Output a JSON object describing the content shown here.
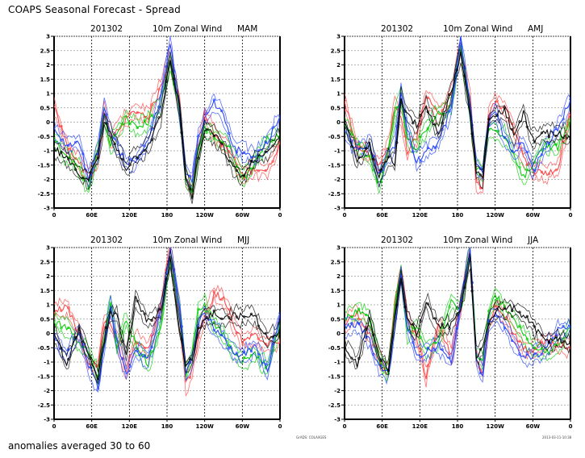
{
  "header": {
    "title": "COAPS Seasonal Forecast - Spread"
  },
  "footer": {
    "note": "anomalies averaged 30 to 60",
    "credit": "GrADS: COLA/IGES",
    "timestamp": "2013-03-11-10:38"
  },
  "colors": {
    "red": "#ff4040",
    "green": "#00cc00",
    "blue": "#2040ff",
    "black": "#000000",
    "grid": "#999999"
  },
  "chart_data": [
    {
      "type": "line",
      "title": {
        "date": "201302",
        "variable": "10m Zonal Wind",
        "season": "MAM"
      },
      "xlabel": "",
      "ylabel": "",
      "ylim": [
        -3,
        3
      ],
      "yticks": [
        "3",
        "2.5",
        "2",
        "1.5",
        "1",
        "0.5",
        "0",
        "-0.5",
        "-1",
        "-1.5",
        "-2",
        "-2.5",
        "-3"
      ],
      "xticks": [
        "0",
        "60E",
        "120E",
        "180",
        "120W",
        "60W",
        "0"
      ],
      "grid": true,
      "x": [
        0,
        20,
        40,
        55,
        70,
        80,
        90,
        100,
        115,
        130,
        150,
        170,
        185,
        200,
        210,
        220,
        230,
        240,
        255,
        270,
        285,
        300,
        320,
        340,
        360
      ],
      "series": [
        {
          "name": "red",
          "values": [
            0.5,
            -0.8,
            -1.4,
            -1.9,
            -1.2,
            0.4,
            -0.6,
            -0.3,
            0.1,
            0.4,
            0.2,
            1.2,
            2.4,
            0.6,
            -2.0,
            -2.3,
            -0.8,
            0.3,
            -0.4,
            -0.8,
            -1.2,
            -1.9,
            -1.6,
            -1.7,
            -0.7
          ]
        },
        {
          "name": "green",
          "values": [
            -0.6,
            -1.2,
            -1.6,
            -2.3,
            -1.0,
            0.3,
            -0.8,
            -0.4,
            0.2,
            -0.2,
            0.0,
            0.6,
            2.1,
            0.4,
            -1.9,
            -2.5,
            -1.0,
            -0.2,
            -0.5,
            -0.7,
            -1.1,
            -2.0,
            -1.4,
            -0.6,
            -0.5
          ]
        },
        {
          "name": "blue",
          "values": [
            -0.3,
            -0.8,
            -0.7,
            -2.0,
            -1.0,
            0.6,
            -0.4,
            -0.8,
            -1.4,
            -1.4,
            -0.6,
            0.8,
            2.8,
            0.3,
            -1.8,
            -2.0,
            -0.5,
            0.1,
            0.7,
            0.2,
            -0.9,
            -1.0,
            -1.2,
            -0.7,
            0.2
          ]
        },
        {
          "name": "black",
          "values": [
            -0.9,
            -1.3,
            -1.8,
            -2.0,
            -1.2,
            0.0,
            -0.4,
            -0.9,
            -1.6,
            -1.2,
            -0.8,
            0.2,
            2.2,
            0.5,
            -1.9,
            -2.6,
            -1.2,
            -0.3,
            -0.4,
            -0.9,
            -1.6,
            -1.9,
            -1.3,
            -1.1,
            -0.5
          ]
        }
      ]
    },
    {
      "type": "line",
      "title": {
        "date": "201302",
        "variable": "10m Zonal Wind",
        "season": "AMJ"
      },
      "xlabel": "",
      "ylabel": "",
      "ylim": [
        -3,
        3
      ],
      "yticks": [
        "3",
        "2.5",
        "2",
        "1.5",
        "1",
        "0.5",
        "0",
        "-0.5",
        "-1",
        "-1.5",
        "-2",
        "-2.5",
        "-3"
      ],
      "xticks": [
        "0",
        "60E",
        "120E",
        "180",
        "120W",
        "60W",
        "0"
      ],
      "grid": true,
      "x": [
        0,
        20,
        40,
        55,
        70,
        80,
        90,
        100,
        115,
        130,
        150,
        170,
        185,
        200,
        210,
        220,
        230,
        240,
        255,
        270,
        285,
        300,
        320,
        340,
        360
      ],
      "series": [
        {
          "name": "red",
          "values": [
            0.7,
            -0.9,
            -1.2,
            -1.5,
            -0.9,
            0.6,
            0.2,
            -1.0,
            -0.5,
            0.9,
            0.2,
            1.0,
            2.6,
            0.8,
            -2.2,
            -2.2,
            0.2,
            0.7,
            0.5,
            -0.3,
            -1.2,
            -1.7,
            -1.8,
            -1.6,
            0.3
          ]
        },
        {
          "name": "green",
          "values": [
            0.0,
            -0.8,
            -1.2,
            -2.2,
            -1.0,
            0.2,
            0.9,
            -0.6,
            -0.9,
            -0.2,
            0.3,
            0.5,
            2.8,
            0.3,
            -1.6,
            -1.7,
            -0.2,
            -0.4,
            -0.5,
            -1.2,
            -1.9,
            -1.5,
            -0.8,
            -0.9,
            0.1
          ]
        },
        {
          "name": "blue",
          "values": [
            -0.4,
            -1.0,
            -0.7,
            -1.9,
            -1.2,
            -0.8,
            1.0,
            -0.2,
            -1.4,
            -1.0,
            -0.7,
            0.5,
            2.9,
            0.5,
            -1.5,
            -1.8,
            0.0,
            0.4,
            -0.6,
            -1.1,
            -0.7,
            -1.7,
            -0.9,
            -0.2,
            0.8
          ]
        },
        {
          "name": "black",
          "values": [
            0.0,
            -1.3,
            -0.8,
            -1.9,
            -1.2,
            -1.4,
            0.9,
            0.2,
            -0.1,
            0.6,
            -0.4,
            1.1,
            2.4,
            0.3,
            -1.7,
            -1.9,
            0.1,
            0.3,
            0.4,
            -0.5,
            0.3,
            -0.6,
            -0.4,
            -0.4,
            -0.6
          ]
        }
      ]
    },
    {
      "type": "line",
      "title": {
        "date": "201302",
        "variable": "10m Zonal Wind",
        "season": "MJJ"
      },
      "xlabel": "",
      "ylabel": "",
      "ylim": [
        -3,
        3
      ],
      "yticks": [
        "3",
        "2.5",
        "2",
        "1.5",
        "1",
        "0.5",
        "0",
        "-0.5",
        "-1",
        "-1.5",
        "-2",
        "-2.5",
        "-3"
      ],
      "xticks": [
        "0",
        "60E",
        "120E",
        "180",
        "120W",
        "60W",
        "0"
      ],
      "grid": true,
      "x": [
        0,
        20,
        40,
        55,
        70,
        80,
        90,
        100,
        115,
        130,
        150,
        170,
        185,
        200,
        210,
        220,
        230,
        240,
        255,
        270,
        285,
        300,
        320,
        340,
        360
      ],
      "series": [
        {
          "name": "red",
          "values": [
            0.8,
            0.9,
            0.0,
            -1.0,
            -1.2,
            0.5,
            0.4,
            -0.2,
            -1.4,
            -0.2,
            -0.6,
            0.9,
            3.0,
            0.8,
            -1.8,
            -1.3,
            -0.2,
            0.5,
            1.4,
            1.2,
            0.4,
            -0.3,
            -0.1,
            -0.4,
            -0.3
          ]
        },
        {
          "name": "green",
          "values": [
            0.4,
            0.2,
            -0.3,
            -0.6,
            -1.5,
            -0.3,
            1.2,
            -0.5,
            0.5,
            -0.4,
            -1.1,
            0.3,
            2.7,
            0.9,
            -1.4,
            -0.7,
            0.8,
            1.0,
            0.3,
            0.0,
            -0.6,
            -1.0,
            -0.7,
            -1.2,
            0.3
          ]
        },
        {
          "name": "blue",
          "values": [
            -0.2,
            -0.8,
            0.0,
            -1.1,
            -1.9,
            -0.5,
            1.0,
            -0.3,
            -1.4,
            -0.6,
            -0.9,
            0.7,
            2.9,
            1.0,
            -1.4,
            -1.0,
            0.3,
            0.7,
            0.2,
            -0.2,
            -0.6,
            -0.8,
            -0.5,
            -1.3,
            0.7
          ]
        },
        {
          "name": "black",
          "values": [
            0.0,
            -1.1,
            0.2,
            -0.8,
            -1.5,
            -0.2,
            0.7,
            0.6,
            -0.8,
            1.2,
            0.4,
            0.8,
            2.6,
            0.2,
            -1.2,
            -0.9,
            0.2,
            0.5,
            0.7,
            0.5,
            0.6,
            0.6,
            0.6,
            -0.2,
            0.1
          ]
        }
      ]
    },
    {
      "type": "line",
      "title": {
        "date": "201302",
        "variable": "10m Zonal Wind",
        "season": "JJA"
      },
      "xlabel": "",
      "ylabel": "",
      "ylim": [
        -3,
        3
      ],
      "yticks": [
        "3",
        "2.5",
        "2",
        "1.5",
        "1",
        "0.5",
        "0",
        "-0.5",
        "-1",
        "-1.5",
        "-2",
        "-2.5",
        "-3"
      ],
      "xticks": [
        "0",
        "60E",
        "120E",
        "180",
        "120W",
        "60W",
        "0"
      ],
      "grid": true,
      "x": [
        0,
        20,
        40,
        55,
        70,
        80,
        90,
        100,
        115,
        130,
        150,
        170,
        185,
        200,
        210,
        220,
        230,
        240,
        255,
        270,
        285,
        300,
        320,
        340,
        360
      ],
      "series": [
        {
          "name": "red",
          "values": [
            0.3,
            0.7,
            0.0,
            -0.9,
            -1.3,
            1.0,
            2.2,
            0.5,
            -0.1,
            -1.5,
            0.3,
            -0.8,
            1.0,
            2.9,
            -0.9,
            -1.4,
            0.4,
            0.9,
            0.6,
            0.0,
            -0.5,
            -0.6,
            -0.3,
            -0.4,
            -0.5
          ]
        },
        {
          "name": "green",
          "values": [
            0.5,
            0.8,
            0.5,
            -0.8,
            -1.4,
            0.8,
            2.2,
            0.0,
            0.2,
            -0.6,
            -0.3,
            1.1,
            0.9,
            2.9,
            -0.7,
            -1.0,
            0.7,
            1.4,
            0.9,
            0.5,
            0.0,
            -0.5,
            -0.7,
            -0.4,
            0.2
          ]
        },
        {
          "name": "blue",
          "values": [
            0.2,
            0.3,
            -0.2,
            -1.2,
            -1.4,
            0.2,
            2.1,
            0.3,
            -0.8,
            -0.6,
            -0.4,
            -1.0,
            1.0,
            3.0,
            -1.0,
            -1.4,
            0.4,
            0.6,
            0.3,
            -0.4,
            -0.8,
            -0.8,
            -0.6,
            0.1,
            0.2
          ]
        },
        {
          "name": "black",
          "values": [
            -0.4,
            -1.1,
            0.6,
            -0.8,
            -1.2,
            0.5,
            1.9,
            0.6,
            0.0,
            1.1,
            0.2,
            0.3,
            0.9,
            2.6,
            -0.8,
            -0.5,
            0.4,
            0.8,
            0.9,
            0.9,
            0.6,
            0.3,
            -0.3,
            -0.2,
            -0.3
          ]
        }
      ]
    }
  ]
}
